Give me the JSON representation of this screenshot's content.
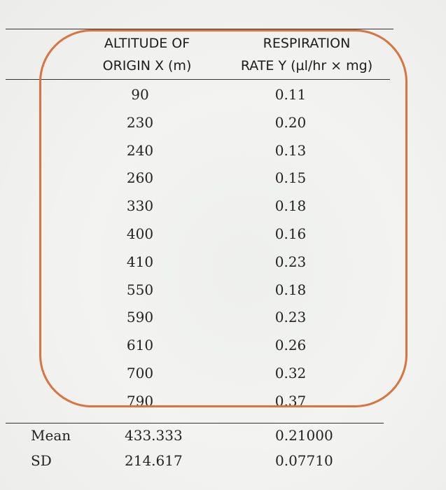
{
  "table": {
    "header_x_line1": "ALTITUDE OF",
    "header_x_line2": "ORIGIN X (m)",
    "header_y_line1": "RESPIRATION",
    "header_y_line2": "RATE Y (µl/hr × mg)",
    "rows": [
      {
        "x": "90",
        "y": "0.11"
      },
      {
        "x": "230",
        "y": "0.20"
      },
      {
        "x": "240",
        "y": "0.13"
      },
      {
        "x": "260",
        "y": "0.15"
      },
      {
        "x": "330",
        "y": "0.18"
      },
      {
        "x": "400",
        "y": "0.16"
      },
      {
        "x": "410",
        "y": "0.23"
      },
      {
        "x": "550",
        "y": "0.18"
      },
      {
        "x": "590",
        "y": "0.23"
      },
      {
        "x": "610",
        "y": "0.26"
      },
      {
        "x": "700",
        "y": "0.32"
      },
      {
        "x": "790",
        "y": "0.37"
      }
    ],
    "summary": {
      "mean_label": "Mean",
      "mean_x": "433.333",
      "mean_y": "0.21000",
      "sd_label": "SD",
      "sd_x": "214.617",
      "sd_y": "0.07710"
    }
  },
  "annotation": {
    "color": "#d9733f"
  }
}
